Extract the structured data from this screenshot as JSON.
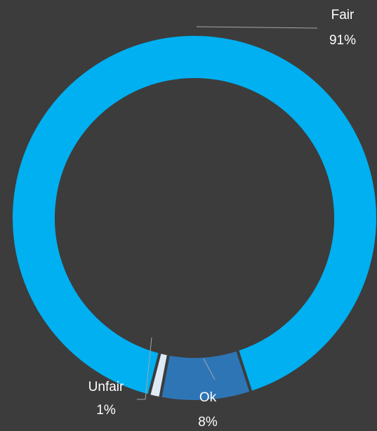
{
  "chart_data": {
    "type": "donut",
    "categories": [
      "Fair",
      "Ok",
      "Unfair"
    ],
    "values": [
      91,
      8,
      1
    ],
    "value_labels": [
      "91%",
      "8%",
      "1%"
    ],
    "colors": [
      "#00b0f0",
      "#2e75b6",
      "#deebf7"
    ]
  }
}
